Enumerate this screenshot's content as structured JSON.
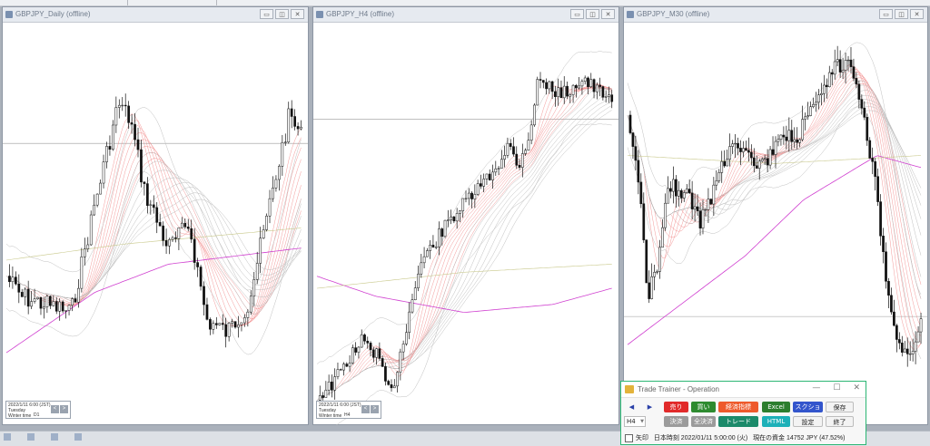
{
  "windows": [
    {
      "id": "daily",
      "title": "GBPJPY_Daily (offline)",
      "info": {
        "date": "2022/1/11 6:00 (JST)",
        "day": "Tuesday",
        "mode": "Winter time",
        "tf": "D1"
      }
    },
    {
      "id": "h4",
      "title": "GBPJPY_H4 (offline)",
      "info": {
        "date": "2022/1/11 6:00 (JST)",
        "day": "Tuesday",
        "mode": "Winter time",
        "tf": "H4"
      }
    },
    {
      "id": "m30",
      "title": "GBPJPY_M30 (offline)"
    }
  ],
  "window_buttons": {
    "minimize": "▭",
    "restore": "◫",
    "close": "✕"
  },
  "chart_nav": {
    "prev": "<",
    "next": ">"
  },
  "panel": {
    "title": "Trade Trainer - Operation",
    "controls": {
      "minimize": "—",
      "maximize": "☐",
      "close": "✕"
    },
    "arrows": {
      "left": "◀",
      "right": "▶"
    },
    "buttons": {
      "sell": "売り",
      "buy": "買い",
      "indicators": "経済指標",
      "excel": "Excel",
      "screenshot": "スクショ",
      "save": "保存",
      "settle": "決済",
      "settle_all": "全決済",
      "trade": "トレード",
      "html": "HTML",
      "settings": "設定",
      "exit": "終了"
    },
    "timeframe": "H4",
    "arrow_label": "矢印",
    "jp_time_label": "日本時刻",
    "jp_time": "2022/01/11 5:00:00 (火)",
    "balance_label": "現在の資金",
    "balance": "14752 JPY (47.52%)"
  },
  "colors": {
    "sell": "#e12a2a",
    "buy": "#2e8b30",
    "indicators": "#ee5a2c",
    "excel": "#2c7e2e",
    "screenshot": "#3355cc",
    "settle": "#9b9b9b",
    "trade": "#1c8a6a",
    "html": "#1cb0b8",
    "panel_border": "#2bb673"
  }
}
